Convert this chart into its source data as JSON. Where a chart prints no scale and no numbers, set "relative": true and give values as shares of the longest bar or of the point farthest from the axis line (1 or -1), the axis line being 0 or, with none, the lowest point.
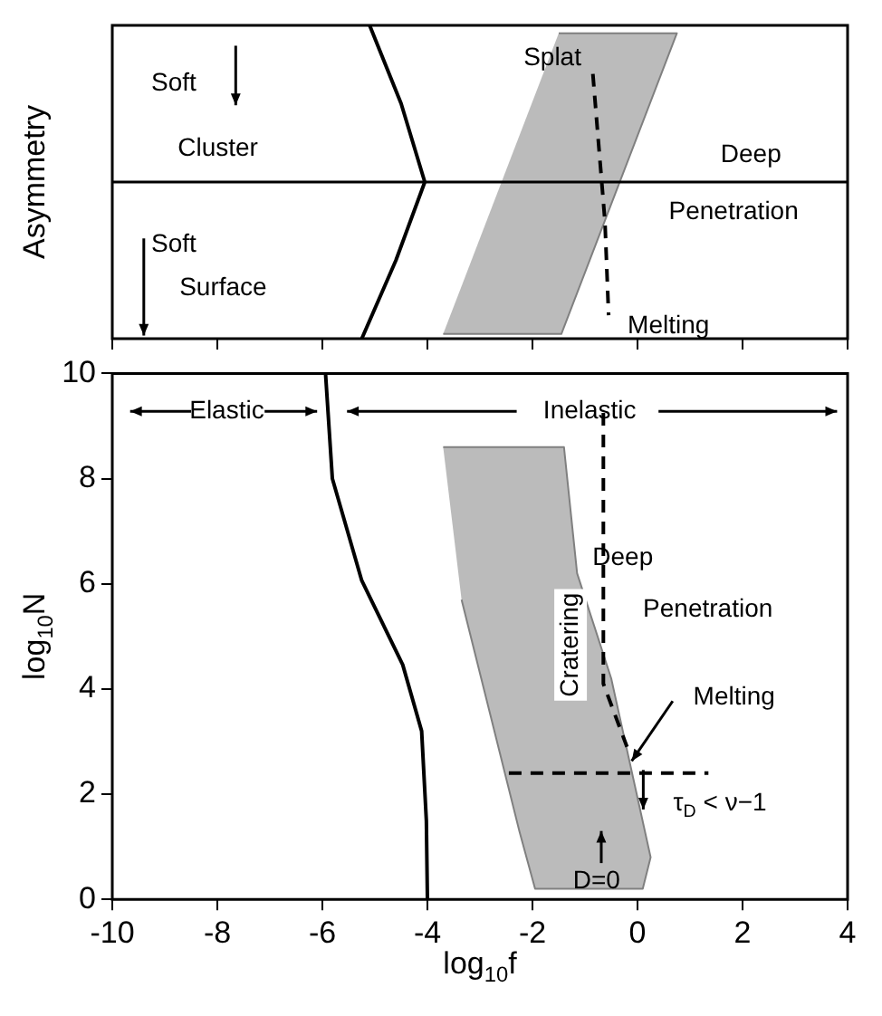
{
  "chart_data": [
    {
      "type": "line",
      "relative": true,
      "ylabel": "Asymmetry",
      "xlim": [
        -10,
        4
      ],
      "xticks": [
        -10,
        -8,
        -6,
        -4,
        -2,
        0,
        2,
        4
      ],
      "tick_labels": false,
      "grid": false,
      "marker": "none",
      "series": [
        {
          "color": "#000000",
          "x": [
            -5.1,
            -4.5,
            -4.05,
            -4.6,
            -5.25
          ],
          "values": [
            1,
            0.5,
            0,
            -0.5,
            -1
          ]
        },
        {
          "line_style": "dashed",
          "color": "#000000",
          "x": [
            -0.85,
            -0.62,
            -0.55
          ],
          "values": [
            0.69,
            -0.25,
            -0.85
          ]
        },
        {
          "type": "area",
          "color": "#808080",
          "x": [
            -1.5,
            0.75,
            -1.45,
            -3.7
          ],
          "values": [
            0.95,
            0.95,
            -0.97,
            -0.97
          ]
        }
      ],
      "annotations": [
        "Soft",
        "Cluster",
        "Soft",
        "Surface",
        "Splat",
        "Deep",
        "Penetration",
        "Melting"
      ]
    },
    {
      "type": "line",
      "xlabel": "log$_{10}$f",
      "ylabel": "log$_{10}$N",
      "xlim": [
        -10,
        4
      ],
      "xticks": [
        -10,
        -8,
        -6,
        -4,
        -2,
        0,
        2,
        4
      ],
      "ylim": [
        0,
        10
      ],
      "yticks": [
        0,
        2,
        4,
        6,
        8,
        10
      ],
      "grid": false,
      "marker": "none",
      "series": [
        {
          "color": "#000000",
          "x": [
            -5.94,
            -5.81,
            -5.25,
            -4.47,
            -4.11,
            -4.02,
            -4.0
          ],
          "values": [
            10,
            8,
            6.06,
            4.46,
            3.2,
            1.49,
            0
          ]
        },
        {
          "line_style": "dashed",
          "color": "#000000",
          "x": [
            -0.65,
            -0.65,
            -0.2
          ],
          "values": [
            9.25,
            4.1,
            2.9
          ]
        },
        {
          "line_style": "dashed",
          "color": "#000000",
          "x": [
            -2.45,
            1.35
          ],
          "values": [
            2.4,
            2.4
          ]
        },
        {
          "type": "area",
          "name": "Cratering",
          "color": "#808080",
          "x": [
            -3.7,
            -1.4,
            -1.15,
            -0.5,
            0.25,
            0.1,
            -1.95,
            -2.25,
            -3.35
          ],
          "values": [
            8.6,
            8.6,
            6.2,
            4.2,
            0.8,
            0.2,
            0.2,
            1.3,
            5.7
          ]
        }
      ],
      "annotations": [
        "Elastic",
        "Inelastic",
        "Deep",
        "Penetration",
        "Melting",
        "τ$_{D}$ < ν−1",
        "D=0"
      ]
    }
  ]
}
